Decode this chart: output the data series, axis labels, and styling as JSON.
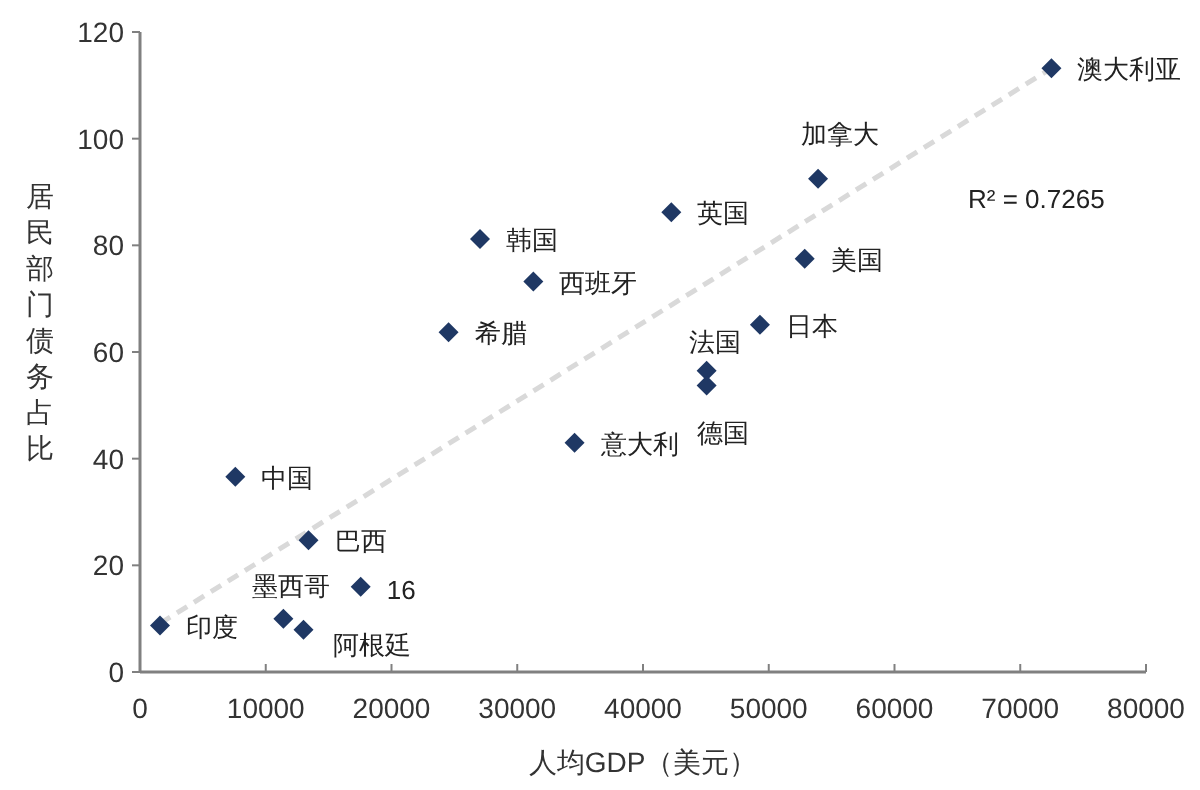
{
  "chart_data": {
    "type": "scatter",
    "xlabel": "人均GDP（美元）",
    "ylabel": "居民部门债务占比",
    "xlim": [
      0,
      80000
    ],
    "ylim": [
      0,
      120
    ],
    "xticks": [
      0,
      10000,
      20000,
      30000,
      40000,
      50000,
      60000,
      70000,
      80000
    ],
    "yticks": [
      0,
      20,
      40,
      60,
      80,
      100,
      120
    ],
    "grid": false,
    "marker": "diamond",
    "series": [
      {
        "color": "#1f3864",
        "x": [
          1590,
          7580,
          13400,
          11400,
          13000,
          17550,
          34560,
          27040,
          31280,
          24540,
          42250,
          53920,
          52860,
          49300,
          45060,
          45060,
          72480
        ],
        "values": [
          8.7,
          36.6,
          24.7,
          10.0,
          7.9,
          16.0,
          43,
          81.2,
          73.2,
          63.7,
          86.2,
          92.5,
          77.5,
          65.1,
          56.5,
          53.7,
          113.2
        ]
      },
      {
        "type": "line",
        "marker": "none",
        "color": "#d9d9d9",
        "line_style": "dashed",
        "x": [
          1590,
          72480
        ],
        "values": [
          9.1,
          113.2
        ]
      }
    ],
    "annotations": [
      {
        "text": "印度",
        "x": 1590,
        "y": 8.7
      },
      {
        "text": "中国",
        "x": 7580,
        "y": 36.6
      },
      {
        "text": "巴西",
        "x": 13400,
        "y": 24.7
      },
      {
        "text": "墨西哥",
        "x": 11400,
        "y": 10.0
      },
      {
        "text": "阿根廷",
        "x": 13000,
        "y": 7.9
      },
      {
        "text": "16",
        "x": 17550,
        "y": 16.0
      },
      {
        "text": "意大利",
        "x": 34560,
        "y": 43
      },
      {
        "text": "韩国",
        "x": 27040,
        "y": 81.2
      },
      {
        "text": "西班牙",
        "x": 31280,
        "y": 73.2
      },
      {
        "text": "希腊",
        "x": 24540,
        "y": 63.7
      },
      {
        "text": "英国",
        "x": 42250,
        "y": 86.2
      },
      {
        "text": "加拿大",
        "x": 53920,
        "y": 92.5
      },
      {
        "text": "美国",
        "x": 52860,
        "y": 77.5
      },
      {
        "text": "日本",
        "x": 49300,
        "y": 65.1
      },
      {
        "text": "法国",
        "x": 45060,
        "y": 56.5
      },
      {
        "text": "德国",
        "x": 45060,
        "y": 53.7
      },
      {
        "text": "澳大利亚",
        "x": 72480,
        "y": 113.2
      },
      "R² = 0.7265"
    ]
  }
}
